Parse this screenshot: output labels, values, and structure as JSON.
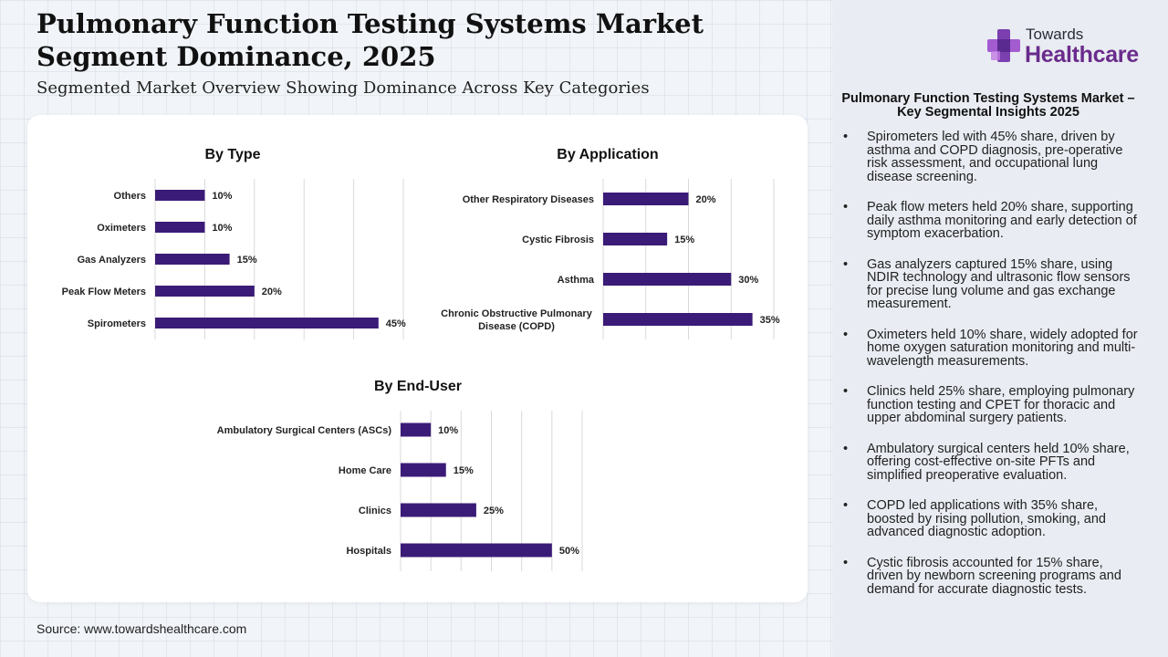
{
  "header": {
    "title": "Pulmonary Function Testing Systems Market Segment Dominance, 2025",
    "subtitle": "Segmented Market Overview Showing Dominance Across Key Categories"
  },
  "source": "Source: www.towardshealthcare.com",
  "logo": {
    "top": "Towards",
    "main": "Healthcare"
  },
  "sidebar": {
    "title": "Pulmonary Function Testing Systems Market – Key Segmental Insights 2025",
    "insights": [
      "Spirometers led with 45% share, driven by asthma and COPD diagnosis, pre-operative risk assessment, and occupational lung disease screening.",
      "Peak flow meters held 20% share, supporting daily asthma monitoring and early detection of symptom exacerbation.",
      "Gas analyzers captured 15% share, using NDIR technology and ultrasonic flow sensors for precise lung volume and gas exchange measurement.",
      "Oximeters held 10% share, widely adopted for home oxygen saturation monitoring and multi-wavelength measurements.",
      "Clinics held 25% share, employing pulmonary function testing and CPET for thoracic and upper abdominal surgery patients.",
      "Ambulatory surgical centers held 10% share, offering cost-effective on-site PFTs and simplified preoperative evaluation.",
      "COPD led applications with 35% share, boosted by rising pollution, smoking, and advanced diagnostic adoption.",
      "Cystic fibrosis accounted for 15% share, driven by newborn screening programs and demand for accurate diagnostic tests."
    ]
  },
  "colors": {
    "bar": "#3b1b78",
    "accent": "#6a2b8c",
    "grid": "#d9d9d9"
  },
  "chart_data": [
    {
      "type": "bar",
      "orientation": "horizontal",
      "title": "By Type",
      "categories": [
        "Others",
        "Oximeters",
        "Gas Analyzers",
        "Peak Flow Meters",
        "Spirometers"
      ],
      "values": [
        10,
        10,
        15,
        20,
        45
      ],
      "labels": [
        "10%",
        "10%",
        "15%",
        "20%",
        "45%"
      ],
      "xlim": [
        0,
        50
      ],
      "grid": true
    },
    {
      "type": "bar",
      "orientation": "horizontal",
      "title": "By Application",
      "categories": [
        "Other Respiratory Diseases",
        "Cystic Fibrosis",
        "Asthma",
        "Chronic Obstructive Pulmonary Disease (COPD)"
      ],
      "values": [
        20,
        15,
        30,
        35
      ],
      "labels": [
        "20%",
        "15%",
        "30%",
        "35%"
      ],
      "xlim": [
        0,
        40
      ],
      "grid": true
    },
    {
      "type": "bar",
      "orientation": "horizontal",
      "title": "By End-User",
      "categories": [
        "Ambulatory Surgical Centers (ASCs)",
        "Home Care",
        "Clinics",
        "Hospitals"
      ],
      "values": [
        10,
        15,
        25,
        50
      ],
      "labels": [
        "10%",
        "15%",
        "25%",
        "50%"
      ],
      "xlim": [
        0,
        60
      ],
      "grid": true
    }
  ]
}
